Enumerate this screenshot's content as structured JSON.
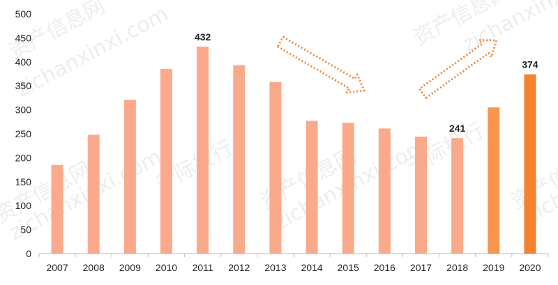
{
  "chart_data": {
    "type": "bar",
    "title": "",
    "xlabel": "",
    "ylabel": "",
    "categories": [
      "2007",
      "2008",
      "2009",
      "2010",
      "2011",
      "2012",
      "2013",
      "2014",
      "2015",
      "2016",
      "2017",
      "2018",
      "2019",
      "2020"
    ],
    "values": [
      185,
      248,
      321,
      385,
      432,
      393,
      358,
      277,
      273,
      261,
      244,
      241,
      305,
      374
    ],
    "ylim": [
      0,
      500
    ],
    "yticks": [
      0,
      50,
      100,
      150,
      200,
      250,
      300,
      350,
      400,
      450,
      500
    ],
    "ytick_labels": [
      "0",
      "50",
      "100",
      "150",
      "200",
      "250",
      "300",
      "350",
      "400",
      "450",
      "500"
    ],
    "data_labels": [
      {
        "category": "2011",
        "text": "432"
      },
      {
        "category": "2018",
        "text": "241"
      },
      {
        "category": "2020",
        "text": "374"
      }
    ],
    "bar_colors": {
      "light": "#FBA98B",
      "medium": "#F8964F",
      "dark": "#F4822E"
    },
    "bar_color_by_category": {
      "2019": "medium",
      "2020": "dark"
    },
    "annotations": [
      {
        "type": "dotted-arrow",
        "direction": "down-right",
        "color": "#F08A3E"
      },
      {
        "type": "dotted-arrow",
        "direction": "up-right",
        "color": "#F08A3E"
      }
    ],
    "grid": false,
    "legend": "none"
  },
  "watermark": {
    "lines": [
      "资产信息网",
      "zichanxinxi.com",
      "千际投行"
    ]
  }
}
